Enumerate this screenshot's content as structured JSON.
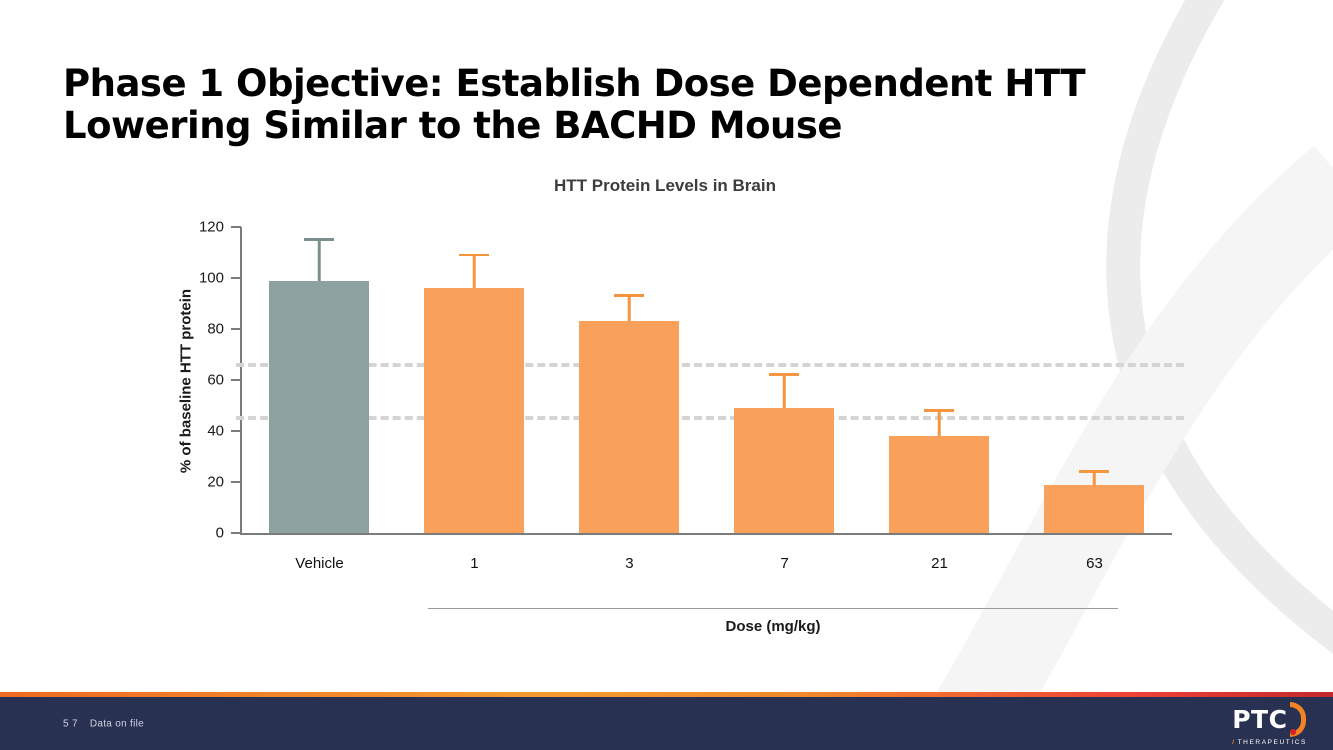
{
  "slide": {
    "title_line1": "Phase 1 Objective: Establish Dose Dependent HTT",
    "title_line2": "Lowering Similar to the BACHD Mouse"
  },
  "chart_data": {
    "type": "bar",
    "title": "HTT Protein Levels in Brain",
    "xlabel": "Dose (mg/kg)",
    "ylabel": "% of baseline HTT protein",
    "categories": [
      "Vehicle",
      "1",
      "3",
      "7",
      "21",
      "63"
    ],
    "values": [
      99,
      96,
      83,
      49,
      38,
      19
    ],
    "errors_up": [
      16,
      13,
      10,
      13,
      10,
      5
    ],
    "bar_colors": [
      "#8EA1A1",
      "#F9A15B",
      "#F9A15B",
      "#F9A15B",
      "#F9A15B",
      "#F9A15B"
    ],
    "error_colors": [
      "#7C8F8F",
      "#F6953F",
      "#F6953F",
      "#F6953F",
      "#F6953F",
      "#F6953F"
    ],
    "ylim": [
      0,
      120
    ],
    "yticks": [
      0,
      20,
      40,
      60,
      80,
      100,
      120
    ],
    "reference_lines": [
      66,
      45
    ],
    "grid": false,
    "legend": "none"
  },
  "footer": {
    "page_number": "5 7",
    "note": "Data on file",
    "logo": {
      "text": "PTC",
      "subtext": "THERAPEUTICS"
    }
  },
  "colors": {
    "accent_orange": "#F58220",
    "bar_orange": "#F9A15B",
    "bar_gray": "#8EA1A1",
    "footer_bg": "#293153",
    "dashed_line": "#D4D4D4"
  }
}
